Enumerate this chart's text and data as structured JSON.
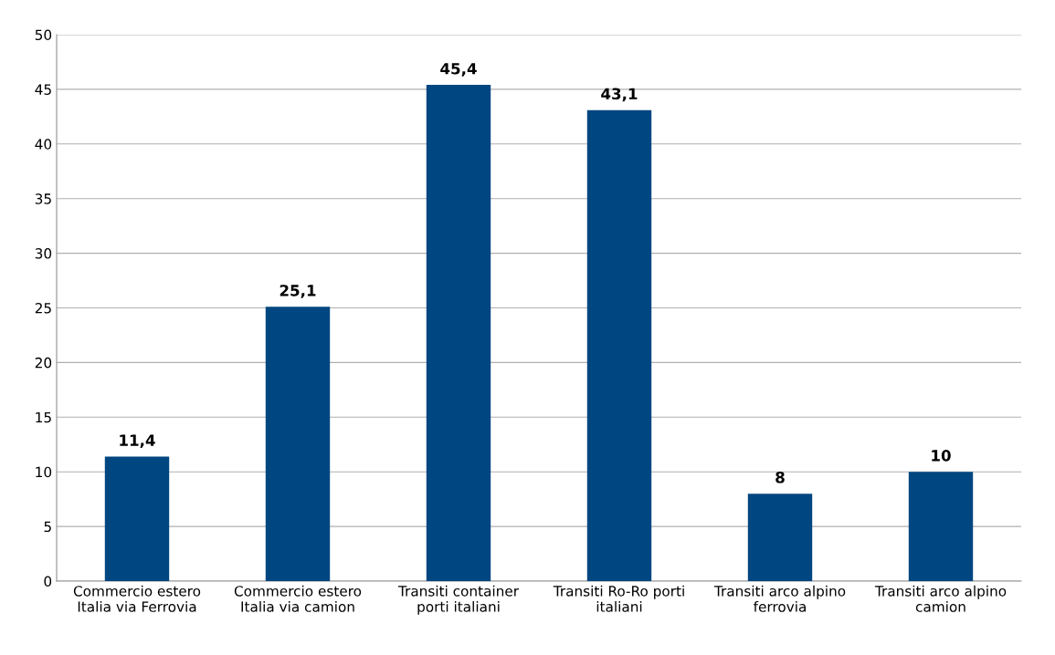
{
  "chart_data": {
    "type": "bar",
    "categories": [
      "Commercio estero\nItalia via Ferrovia",
      "Commercio estero\nItalia via camion",
      "Transiti container\nporti italiani",
      "Transiti Ro-Ro porti\nitaliani",
      "Transiti arco alpino\nferrovia",
      "Transiti arco alpino\ncamion"
    ],
    "values": [
      11.4,
      25.1,
      45.4,
      43.1,
      8,
      10
    ],
    "value_labels": [
      "11,4",
      "25,1",
      "45,4",
      "43,1",
      "8",
      "10"
    ],
    "color": "#004680",
    "ylim": [
      0,
      50
    ],
    "yticks": [
      0,
      5,
      10,
      15,
      20,
      25,
      30,
      35,
      40,
      45,
      50
    ],
    "grid": "y",
    "legend": false
  }
}
